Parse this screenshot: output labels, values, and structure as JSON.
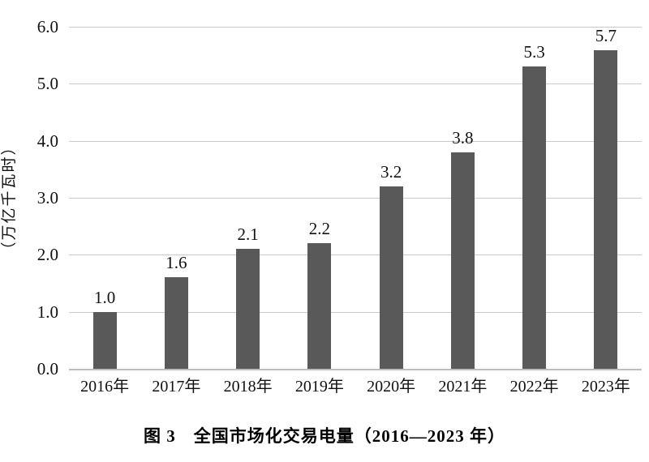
{
  "chart_data": {
    "type": "bar",
    "categories": [
      "2016年",
      "2017年",
      "2018年",
      "2019年",
      "2020年",
      "2021年",
      "2022年",
      "2023年"
    ],
    "values": [
      1.0,
      1.6,
      2.1,
      2.2,
      3.2,
      3.8,
      5.3,
      5.7
    ],
    "value_labels": [
      "1.0",
      "1.6",
      "2.1",
      "2.2",
      "3.2",
      "3.8",
      "5.3",
      "5.7"
    ],
    "title": "图 3　全国市场化交易电量（2016—2023 年）",
    "xlabel": "",
    "ylabel": "（万亿千瓦时）",
    "ylim": [
      0,
      6.0
    ],
    "ytick_step": 1.0,
    "ytick_labels": [
      "0.0",
      "1.0",
      "2.0",
      "3.0",
      "4.0",
      "5.0",
      "6.0"
    ],
    "grid": true,
    "legend_position": "none",
    "bar_color": "#595959",
    "gridline_color": "#c9c9c9"
  },
  "caption": "图 3　全国市场化交易电量（2016—2023 年）",
  "y_axis_title": "（万亿千瓦时）"
}
